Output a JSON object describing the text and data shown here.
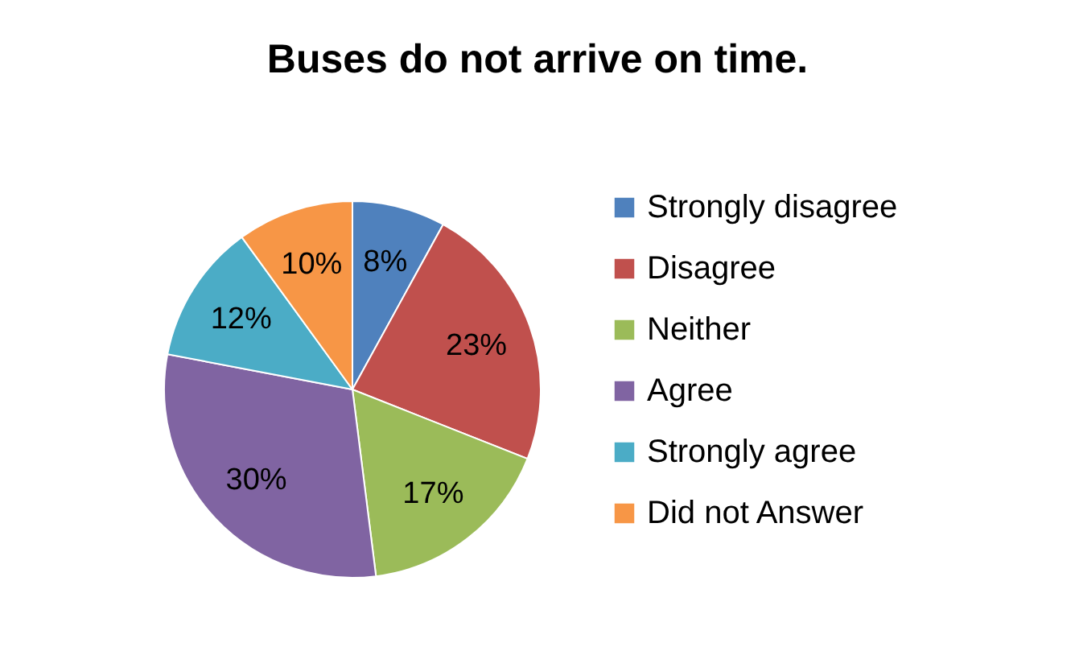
{
  "chart_data": {
    "type": "pie",
    "title": "Buses do not arrive on time.",
    "categories": [
      "Strongly disagree",
      "Disagree",
      "Neither",
      "Agree",
      "Strongly agree",
      "Did not Answer"
    ],
    "values": [
      8,
      23,
      17,
      30,
      12,
      10
    ],
    "colors": [
      "#4f81bd",
      "#c0504d",
      "#9bbb59",
      "#8064a2",
      "#4bacc6",
      "#f79646"
    ],
    "value_labels": [
      "8%",
      "23%",
      "17%",
      "30%",
      "12%",
      "10%"
    ],
    "legend": "right"
  }
}
